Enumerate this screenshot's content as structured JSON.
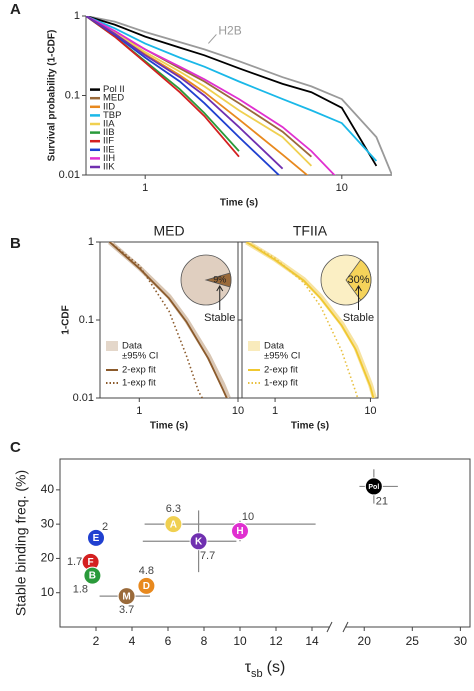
{
  "chart_data": [
    {
      "type": "line",
      "panel_label": "A",
      "x_label": "Time (s)",
      "y_label": "Survival probability (1-CDF)",
      "log_x": true,
      "log_y": true,
      "xlim": [
        0.5,
        18
      ],
      "ylim": [
        0.01,
        1
      ],
      "xticks": [
        1,
        10
      ],
      "yticks": [
        0.01,
        0.1,
        1
      ],
      "legend_corner": "lower left",
      "x": [
        0.5,
        0.7,
        1,
        1.5,
        2,
        3,
        5,
        7,
        10,
        15,
        18
      ],
      "series": [
        {
          "name": "H2B",
          "color": "#9a9a9a",
          "in_legend": false,
          "values": [
            1,
            0.85,
            0.63,
            0.47,
            0.38,
            0.27,
            0.17,
            0.13,
            0.09,
            0.03,
            0.01
          ]
        },
        {
          "name": "Pol II",
          "color": "#000000",
          "values": [
            1,
            0.78,
            0.55,
            0.4,
            0.32,
            0.22,
            0.14,
            0.11,
            0.07,
            0.013,
            null
          ]
        },
        {
          "name": "MED",
          "color": "#9a6a3a",
          "values": [
            1,
            0.63,
            0.38,
            0.22,
            0.15,
            0.08,
            0.035,
            0.017,
            null,
            null,
            null
          ]
        },
        {
          "name": "IID",
          "color": "#e8891e",
          "values": [
            1,
            0.6,
            0.33,
            0.18,
            0.11,
            0.05,
            0.018,
            0.009,
            null,
            null,
            null
          ]
        },
        {
          "name": "TBP",
          "color": "#1ab8e8",
          "values": [
            1,
            0.7,
            0.45,
            0.3,
            0.23,
            0.15,
            0.09,
            0.065,
            0.045,
            0.015,
            null
          ]
        },
        {
          "name": "IIA",
          "color": "#f0d050",
          "values": [
            1,
            0.62,
            0.35,
            0.2,
            0.13,
            0.065,
            0.03,
            0.013,
            null,
            null,
            null
          ]
        },
        {
          "name": "IIB",
          "color": "#2a9a3a",
          "values": [
            1,
            0.55,
            0.27,
            0.12,
            0.06,
            0.02,
            null,
            null,
            null,
            null,
            null
          ]
        },
        {
          "name": "IIF",
          "color": "#d42020",
          "values": [
            1,
            0.55,
            0.26,
            0.11,
            0.055,
            0.017,
            null,
            null,
            null,
            null,
            null
          ]
        },
        {
          "name": "IIE",
          "color": "#2040d0",
          "values": [
            1,
            0.58,
            0.3,
            0.15,
            0.08,
            0.03,
            0.009,
            null,
            null,
            null,
            null
          ]
        },
        {
          "name": "IIH",
          "color": "#e030d0",
          "values": [
            1,
            0.65,
            0.38,
            0.23,
            0.16,
            0.09,
            0.04,
            0.02,
            0.008,
            null,
            null
          ]
        },
        {
          "name": "IIK",
          "color": "#7030b0",
          "values": [
            1,
            0.6,
            0.32,
            0.17,
            0.1,
            0.04,
            0.012,
            null,
            null,
            null,
            null
          ]
        }
      ]
    },
    {
      "type": "line",
      "panel_label": "B",
      "title": "MED",
      "x_label": "Time (s)",
      "y_label": "1-CDF",
      "log_x": true,
      "log_y": true,
      "xlim": [
        0.4,
        10
      ],
      "ylim": [
        0.01,
        1
      ],
      "xticks": [
        1,
        10
      ],
      "yticks": [
        0.01,
        0.1,
        1
      ],
      "legend_corner": "lower left",
      "series": [
        {
          "name": "Data",
          "ci_label": "±95% CI",
          "color": "#d9c6b3",
          "style": "band",
          "x": [
            0.5,
            1,
            2,
            3,
            5,
            7,
            8
          ],
          "values": [
            1,
            0.47,
            0.2,
            0.1,
            0.035,
            0.015,
            0.01
          ]
        },
        {
          "name": "2-exp fit",
          "color": "#8b5a2b",
          "style": "solid",
          "x": [
            0.5,
            1,
            2,
            3,
            5,
            7,
            8
          ],
          "values": [
            1,
            0.46,
            0.19,
            0.095,
            0.032,
            0.013,
            0.009
          ]
        },
        {
          "name": "1-exp fit",
          "color": "#8b5a2b",
          "style": "dotted",
          "x": [
            0.5,
            1,
            2,
            3,
            4,
            5.5
          ],
          "values": [
            1,
            0.5,
            0.13,
            0.035,
            0.012,
            0.006
          ]
        }
      ],
      "inset": {
        "type": "pie",
        "values": [
          9
        ],
        "value_labels": [
          "9%"
        ],
        "labels": [
          "Stable"
        ],
        "colors": [
          "#9a6a3a"
        ],
        "background_color": "#e0cfc0"
      }
    },
    {
      "type": "line",
      "title": "TFIIA",
      "x_label": "Time (s)",
      "y_tick_labels": false,
      "log_x": true,
      "log_y": true,
      "xlim": [
        0.45,
        12
      ],
      "ylim": [
        0.01,
        1
      ],
      "xticks": [
        1,
        10
      ],
      "yticks": [
        0.01,
        0.1,
        1
      ],
      "legend_corner": "lower left",
      "series": [
        {
          "name": "Data",
          "ci_label": "±95% CI",
          "color": "#f7e3a0",
          "style": "band",
          "x": [
            0.5,
            1,
            2,
            3,
            5,
            7,
            10,
            11
          ],
          "values": [
            1,
            0.6,
            0.33,
            0.2,
            0.09,
            0.045,
            0.015,
            0.01
          ]
        },
        {
          "name": "2-exp fit",
          "color": "#f0c830",
          "style": "solid",
          "x": [
            0.5,
            1,
            2,
            3,
            5,
            7,
            10,
            11
          ],
          "values": [
            1,
            0.59,
            0.32,
            0.19,
            0.085,
            0.042,
            0.014,
            0.009
          ]
        },
        {
          "name": "1-exp fit",
          "color": "#e8c040",
          "style": "dotted",
          "x": [
            0.5,
            1,
            2,
            3,
            5,
            7,
            10
          ],
          "values": [
            1,
            0.62,
            0.3,
            0.15,
            0.04,
            0.012,
            0.003
          ]
        }
      ],
      "inset": {
        "type": "pie",
        "values": [
          30
        ],
        "value_labels": [
          "30%"
        ],
        "labels": [
          "Stable"
        ],
        "colors": [
          "#f5d35a"
        ],
        "background_color": "#fbefc4"
      }
    },
    {
      "type": "scatter",
      "panel_label": "C",
      "y_label": "Stable binding freq. (%)",
      "x_label": [
        "τ",
        "sb",
        "(s)"
      ],
      "xlim": [
        0,
        15
      ],
      "xticks": [
        2,
        4,
        6,
        8,
        10,
        12,
        14
      ],
      "x_break": {
        "xlim": [
          18,
          31
        ],
        "xticks": [
          20,
          25,
          30
        ]
      },
      "ylim": [
        0,
        49
      ],
      "yticks": [
        10,
        20,
        30,
        40
      ],
      "points": {
        "labels": [
          "E",
          "F",
          "B",
          "M",
          "D",
          "A",
          "K",
          "H",
          "Pol"
        ],
        "colors": [
          "#2040d0",
          "#d42020",
          "#2a9a3a",
          "#9a6a3a",
          "#e8891e",
          "#f0d050",
          "#7030b0",
          "#e030d0",
          "#000000"
        ],
        "x": [
          2,
          1.7,
          1.8,
          3.7,
          4.8,
          6.3,
          7.7,
          10,
          21
        ],
        "y": [
          26,
          19,
          15,
          9,
          12,
          30,
          25,
          28,
          41
        ],
        "xerr": [
          [
            0,
            0
          ],
          [
            0,
            0
          ],
          [
            0,
            0
          ],
          [
            1.5,
            1.3
          ],
          [
            0.3,
            0.3
          ],
          [
            1.6,
            7.9
          ],
          [
            3.1,
            2.1
          ],
          [
            0.5,
            0.5
          ],
          [
            1.5,
            2.5
          ]
        ],
        "yerr": [
          [
            0,
            0
          ],
          [
            0,
            0
          ],
          [
            0,
            0
          ],
          [
            0,
            0
          ],
          [
            0,
            0
          ],
          [
            0,
            0
          ],
          [
            9,
            9
          ],
          [
            3,
            3
          ],
          [
            5,
            5
          ]
        ]
      }
    }
  ]
}
